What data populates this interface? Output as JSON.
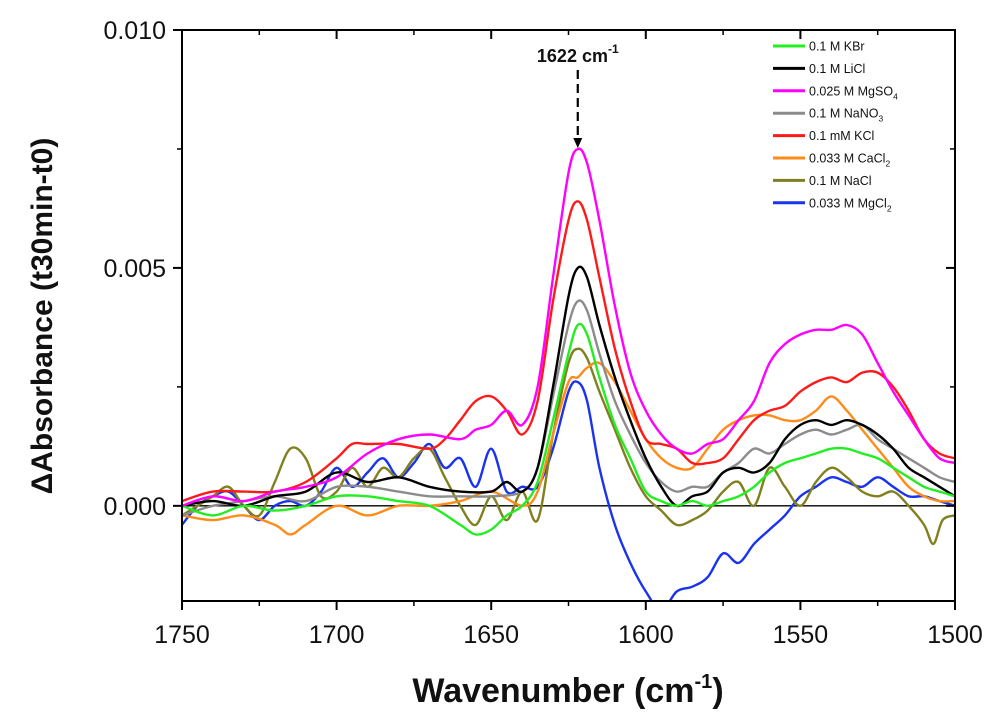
{
  "chart_data": {
    "type": "line",
    "xlabel": "Wavenumber (cm",
    "xlabel_sup": "-1",
    "xlabel_end": ")",
    "ylabel_symbol": "Δ",
    "ylabel": "Absorbance (t30min-t0)",
    "xlim": [
      1750,
      1500
    ],
    "ylim": [
      -0.002,
      0.01
    ],
    "x_reversed": true,
    "x_ticks": [
      1750,
      1700,
      1650,
      1600,
      1550,
      1500
    ],
    "x_tick_labels": [
      "1750",
      "1700",
      "1650",
      "1600",
      "1550",
      "1500"
    ],
    "y_ticks": [
      0.0,
      0.005,
      0.01
    ],
    "y_tick_labels": [
      "0.000",
      "0.005",
      "0.010"
    ],
    "baseline": 0,
    "legend_position": "top-right",
    "annotation": {
      "text": "1622 cm",
      "sup": "-1",
      "x": 1622
    },
    "series": [
      {
        "label": "0.1 M KBr",
        "sub": "",
        "color": "#22ee22",
        "x": [
          1750,
          1740,
          1730,
          1720,
          1710,
          1700,
          1690,
          1680,
          1670,
          1660,
          1655,
          1650,
          1645,
          1640,
          1635,
          1630,
          1625,
          1622,
          1619,
          1615,
          1610,
          1605,
          1600,
          1595,
          1590,
          1585,
          1580,
          1575,
          1570,
          1565,
          1560,
          1555,
          1550,
          1545,
          1540,
          1535,
          1530,
          1525,
          1520,
          1515,
          1510,
          1505,
          1500
        ],
        "y": [
          0.0,
          -0.0002,
          0.0,
          -0.0001,
          0.0,
          0.0002,
          0.0002,
          0.0001,
          0.0,
          -0.0004,
          -0.0006,
          -0.0005,
          -0.0002,
          0.0,
          0.0005,
          0.0018,
          0.0032,
          0.0038,
          0.0036,
          0.0027,
          0.0017,
          0.001,
          0.0003,
          0.0001,
          0.0,
          0.0001,
          0.0,
          0.0001,
          0.0002,
          0.0004,
          0.0007,
          0.0009,
          0.001,
          0.0011,
          0.0012,
          0.0012,
          0.0011,
          0.001,
          0.0008,
          0.0006,
          0.0004,
          0.0003,
          0.0002
        ]
      },
      {
        "label": "0.1 M LiCl",
        "sub": "",
        "color": "#000000",
        "x": [
          1750,
          1740,
          1730,
          1720,
          1710,
          1700,
          1690,
          1680,
          1670,
          1660,
          1650,
          1645,
          1640,
          1635,
          1630,
          1625,
          1622,
          1619,
          1615,
          1610,
          1605,
          1600,
          1595,
          1590,
          1585,
          1580,
          1575,
          1570,
          1565,
          1560,
          1555,
          1550,
          1545,
          1540,
          1535,
          1530,
          1525,
          1520,
          1515,
          1510,
          1505,
          1500
        ],
        "y": [
          0.0,
          0.0001,
          0.0,
          0.0002,
          0.0003,
          0.0007,
          0.0005,
          0.0006,
          0.0004,
          0.0003,
          0.0003,
          0.0005,
          0.0003,
          0.0008,
          0.0025,
          0.0044,
          0.005,
          0.0048,
          0.0038,
          0.0027,
          0.0018,
          0.001,
          0.0004,
          0.0,
          0.0002,
          0.0003,
          0.0007,
          0.0008,
          0.0007,
          0.0009,
          0.0014,
          0.0017,
          0.0018,
          0.0017,
          0.0018,
          0.0017,
          0.0015,
          0.0012,
          0.0008,
          0.0006,
          0.0004,
          0.0002
        ]
      },
      {
        "label": "0.025 M MgSO",
        "sub": "4",
        "color": "#ff00ff",
        "x": [
          1750,
          1740,
          1730,
          1720,
          1710,
          1700,
          1690,
          1680,
          1670,
          1660,
          1655,
          1650,
          1645,
          1640,
          1635,
          1630,
          1625,
          1622,
          1619,
          1615,
          1610,
          1605,
          1600,
          1595,
          1590,
          1585,
          1580,
          1575,
          1570,
          1565,
          1560,
          1555,
          1550,
          1545,
          1540,
          1535,
          1530,
          1525,
          1520,
          1515,
          1510,
          1505,
          1500
        ],
        "y": [
          0.0,
          0.0002,
          0.0001,
          0.0003,
          0.0004,
          0.0006,
          0.0011,
          0.0014,
          0.0015,
          0.0014,
          0.0016,
          0.0017,
          0.002,
          0.0017,
          0.0025,
          0.0048,
          0.007,
          0.0075,
          0.0072,
          0.006,
          0.0042,
          0.0028,
          0.002,
          0.0015,
          0.0012,
          0.0011,
          0.0013,
          0.0014,
          0.0018,
          0.0022,
          0.003,
          0.0034,
          0.0036,
          0.0037,
          0.0037,
          0.0038,
          0.0036,
          0.003,
          0.0024,
          0.0019,
          0.0014,
          0.001,
          0.0009
        ]
      },
      {
        "label": "0.1 M NaNO",
        "sub": "3",
        "color": "#8c8c8c",
        "x": [
          1750,
          1740,
          1730,
          1720,
          1710,
          1700,
          1690,
          1680,
          1670,
          1660,
          1650,
          1640,
          1635,
          1630,
          1625,
          1622,
          1619,
          1615,
          1610,
          1605,
          1600,
          1595,
          1590,
          1585,
          1580,
          1575,
          1570,
          1565,
          1560,
          1555,
          1550,
          1545,
          1540,
          1535,
          1530,
          1525,
          1520,
          1515,
          1510,
          1505,
          1500
        ],
        "y": [
          -0.0002,
          0.0,
          0.0001,
          0.0002,
          0.0001,
          0.0004,
          0.0004,
          0.0003,
          0.0002,
          0.0002,
          0.0002,
          0.0003,
          0.0008,
          0.0023,
          0.0038,
          0.0043,
          0.0041,
          0.0032,
          0.0022,
          0.0015,
          0.0009,
          0.0005,
          0.0003,
          0.0004,
          0.0004,
          0.0007,
          0.0009,
          0.0012,
          0.0011,
          0.0013,
          0.0015,
          0.0016,
          0.0015,
          0.0016,
          0.0017,
          0.0014,
          0.0012,
          0.001,
          0.0008,
          0.0006,
          0.0005
        ]
      },
      {
        "label": "0.1 mM KCl",
        "sub": "",
        "color": "#ff1a1a",
        "x": [
          1750,
          1740,
          1730,
          1720,
          1710,
          1700,
          1695,
          1690,
          1680,
          1670,
          1665,
          1660,
          1655,
          1650,
          1645,
          1640,
          1635,
          1630,
          1625,
          1622,
          1619,
          1615,
          1610,
          1605,
          1600,
          1595,
          1590,
          1585,
          1580,
          1575,
          1570,
          1565,
          1560,
          1555,
          1550,
          1545,
          1540,
          1535,
          1530,
          1525,
          1520,
          1515,
          1510,
          1505,
          1500
        ],
        "y": [
          0.0001,
          0.0003,
          0.0003,
          0.0003,
          0.0005,
          0.001,
          0.0013,
          0.0013,
          0.0013,
          0.0012,
          0.0014,
          0.0018,
          0.0022,
          0.0023,
          0.002,
          0.0015,
          0.0022,
          0.0043,
          0.006,
          0.0064,
          0.006,
          0.0048,
          0.0033,
          0.0022,
          0.0014,
          0.0013,
          0.0012,
          0.0009,
          0.0009,
          0.001,
          0.0014,
          0.0018,
          0.002,
          0.0021,
          0.0024,
          0.0026,
          0.0027,
          0.0026,
          0.0028,
          0.0028,
          0.0025,
          0.002,
          0.0014,
          0.0011,
          0.001
        ]
      },
      {
        "label": "0.033 M CaCl",
        "sub": "2",
        "color": "#ff8c1a",
        "x": [
          1750,
          1740,
          1730,
          1720,
          1715,
          1710,
          1700,
          1690,
          1680,
          1670,
          1660,
          1650,
          1640,
          1635,
          1630,
          1625,
          1622,
          1619,
          1615,
          1610,
          1605,
          1600,
          1595,
          1590,
          1585,
          1580,
          1575,
          1570,
          1565,
          1560,
          1555,
          1550,
          1545,
          1540,
          1535,
          1530,
          1525,
          1520,
          1515,
          1510,
          1505,
          1500
        ],
        "y": [
          -0.0002,
          -0.0003,
          -0.0002,
          -0.0004,
          -0.0006,
          -0.0004,
          0.0,
          -0.0002,
          0.0,
          0.0,
          0.0001,
          0.0003,
          0.0,
          0.0003,
          0.0015,
          0.0026,
          0.0027,
          0.0029,
          0.003,
          0.0026,
          0.002,
          0.0014,
          0.001,
          0.0008,
          0.0008,
          0.0012,
          0.0016,
          0.0018,
          0.0019,
          0.0019,
          0.0018,
          0.0018,
          0.002,
          0.0023,
          0.002,
          0.0016,
          0.0012,
          0.0008,
          0.0004,
          0.0002,
          0.0001,
          0.0001
        ]
      },
      {
        "label": "0.1 M NaCl",
        "sub": "",
        "color": "#808020",
        "x": [
          1750,
          1745,
          1740,
          1735,
          1730,
          1725,
          1720,
          1715,
          1710,
          1705,
          1700,
          1695,
          1690,
          1685,
          1680,
          1675,
          1670,
          1665,
          1660,
          1655,
          1650,
          1645,
          1640,
          1635,
          1630,
          1625,
          1622,
          1619,
          1615,
          1610,
          1605,
          1600,
          1595,
          1590,
          1585,
          1580,
          1575,
          1570,
          1565,
          1560,
          1555,
          1550,
          1545,
          1540,
          1535,
          1530,
          1525,
          1520,
          1515,
          1510,
          1507,
          1504,
          1500
        ],
        "y": [
          -0.0002,
          0.0,
          0.0002,
          0.0004,
          0.0,
          -0.0002,
          0.0005,
          0.0012,
          0.001,
          0.0002,
          0.0003,
          0.0008,
          0.0004,
          0.0008,
          0.0006,
          0.001,
          0.0012,
          0.0006,
          0.0,
          -0.0004,
          0.0002,
          -0.0003,
          0.0003,
          -0.0003,
          0.0015,
          0.003,
          0.0033,
          0.0031,
          0.0024,
          0.0016,
          0.0008,
          0.0002,
          -0.0001,
          -0.0004,
          -0.0003,
          -0.0001,
          0.0003,
          0.0005,
          0.0,
          0.0008,
          0.0004,
          0.0,
          0.0005,
          0.0008,
          0.0006,
          0.0003,
          0.0002,
          0.0003,
          0.0,
          -0.0004,
          -0.0008,
          -0.0003,
          -0.0002
        ]
      },
      {
        "label": "0.033 M MgCl",
        "sub": "2",
        "color": "#1a33ee",
        "x": [
          1750,
          1745,
          1740,
          1735,
          1730,
          1725,
          1720,
          1715,
          1710,
          1705,
          1700,
          1695,
          1690,
          1685,
          1680,
          1675,
          1670,
          1665,
          1660,
          1655,
          1650,
          1645,
          1640,
          1635,
          1630,
          1625,
          1622,
          1619,
          1615,
          1610,
          1605,
          1600,
          1595,
          1590,
          1585,
          1580,
          1575,
          1570,
          1565,
          1560,
          1555,
          1550,
          1545,
          1540,
          1535,
          1530,
          1525,
          1520,
          1515,
          1510,
          1505,
          1500
        ],
        "y": [
          -0.0004,
          0.0,
          0.0002,
          0.0003,
          0.0,
          -0.0003,
          0.0,
          0.0001,
          0.0,
          0.0003,
          0.0008,
          0.0004,
          0.0007,
          0.001,
          0.0006,
          0.0009,
          0.0013,
          0.0008,
          0.001,
          0.0004,
          0.0012,
          0.0003,
          0.0004,
          0.0004,
          0.0012,
          0.0024,
          0.0026,
          0.0022,
          0.0008,
          -0.0004,
          -0.0012,
          -0.0018,
          -0.0022,
          -0.0018,
          -0.0017,
          -0.0015,
          -0.001,
          -0.0012,
          -0.0008,
          -0.0005,
          -0.0002,
          0.0002,
          0.0004,
          0.0006,
          0.0005,
          0.0004,
          0.0006,
          0.0004,
          0.0002,
          0.0002,
          0.0001,
          0.0
        ]
      }
    ]
  }
}
